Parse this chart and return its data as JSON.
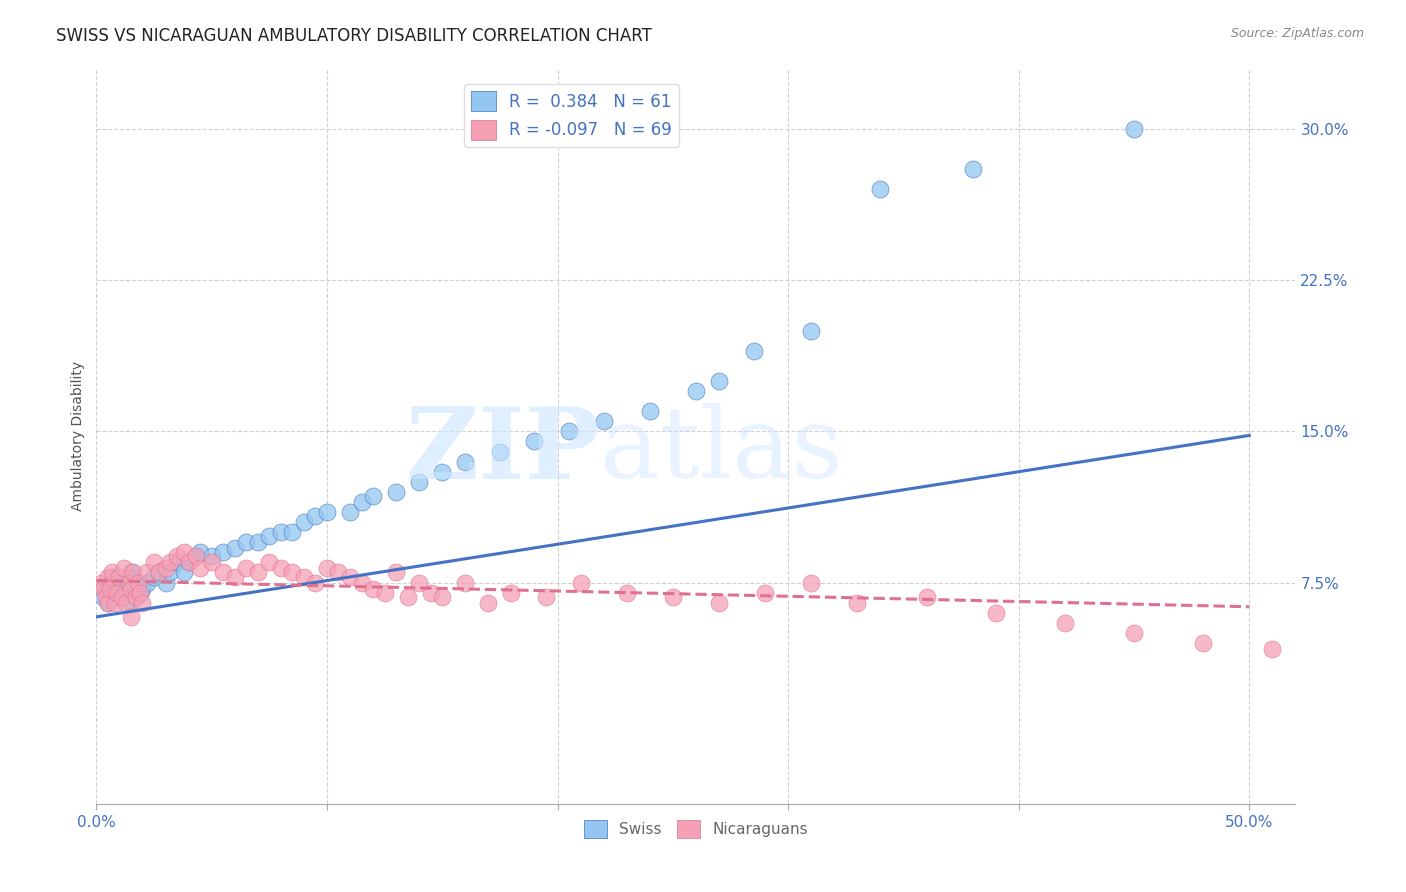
{
  "title": "SWISS VS NICARAGUAN AMBULATORY DISABILITY CORRELATION CHART",
  "source": "Source: ZipAtlas.com",
  "ylabel": "Ambulatory Disability",
  "xlim": [
    0.0,
    0.52
  ],
  "ylim": [
    -0.035,
    0.33
  ],
  "xticks": [
    0.0,
    0.1,
    0.2,
    0.3,
    0.4,
    0.5
  ],
  "yticks": [
    0.075,
    0.15,
    0.225,
    0.3
  ],
  "ytick_labels": [
    "7.5%",
    "15.0%",
    "22.5%",
    "30.0%"
  ],
  "xtick_labels": [
    "0.0%",
    "",
    "",
    "",
    "",
    "50.0%"
  ],
  "swiss_R": 0.384,
  "swiss_N": 61,
  "nicaraguan_R": -0.097,
  "nicaraguan_N": 69,
  "swiss_color": "#93C6F0",
  "nicaraguan_color": "#F5A0B5",
  "swiss_line_color": "#4472C4",
  "nicaraguan_line_color": "#E07090",
  "swiss_line_x0": 0.0,
  "swiss_line_y0": 0.058,
  "swiss_line_x1": 0.5,
  "swiss_line_y1": 0.148,
  "nic_line_x0": 0.0,
  "nic_line_y0": 0.076,
  "nic_line_x1": 0.5,
  "nic_line_y1": 0.063,
  "background_color": "#FFFFFF",
  "plot_bg_color": "#FFFFFF",
  "grid_color": "#CCCCCC",
  "title_fontsize": 12,
  "axis_label_fontsize": 10,
  "tick_fontsize": 11,
  "legend_fontsize": 12,
  "swiss_points_x": [
    0.002,
    0.003,
    0.004,
    0.005,
    0.005,
    0.006,
    0.007,
    0.008,
    0.009,
    0.01,
    0.011,
    0.012,
    0.013,
    0.014,
    0.015,
    0.015,
    0.016,
    0.017,
    0.018,
    0.019,
    0.02,
    0.022,
    0.025,
    0.027,
    0.03,
    0.032,
    0.035,
    0.038,
    0.04,
    0.043,
    0.045,
    0.05,
    0.055,
    0.06,
    0.065,
    0.07,
    0.075,
    0.08,
    0.085,
    0.09,
    0.095,
    0.1,
    0.11,
    0.115,
    0.12,
    0.13,
    0.14,
    0.15,
    0.16,
    0.175,
    0.19,
    0.205,
    0.22,
    0.24,
    0.26,
    0.27,
    0.285,
    0.31,
    0.34,
    0.38,
    0.45
  ],
  "swiss_points_y": [
    0.073,
    0.068,
    0.072,
    0.065,
    0.075,
    0.07,
    0.078,
    0.068,
    0.072,
    0.07,
    0.075,
    0.068,
    0.072,
    0.078,
    0.065,
    0.08,
    0.073,
    0.068,
    0.075,
    0.07,
    0.072,
    0.075,
    0.078,
    0.08,
    0.075,
    0.08,
    0.085,
    0.08,
    0.085,
    0.088,
    0.09,
    0.088,
    0.09,
    0.092,
    0.095,
    0.095,
    0.098,
    0.1,
    0.1,
    0.105,
    0.108,
    0.11,
    0.11,
    0.115,
    0.118,
    0.12,
    0.125,
    0.13,
    0.135,
    0.14,
    0.145,
    0.15,
    0.155,
    0.16,
    0.17,
    0.175,
    0.19,
    0.2,
    0.27,
    0.28,
    0.3
  ],
  "nicaraguan_points_x": [
    0.002,
    0.003,
    0.004,
    0.005,
    0.005,
    0.006,
    0.007,
    0.008,
    0.009,
    0.01,
    0.011,
    0.012,
    0.013,
    0.014,
    0.015,
    0.015,
    0.016,
    0.017,
    0.018,
    0.019,
    0.02,
    0.022,
    0.025,
    0.027,
    0.03,
    0.032,
    0.035,
    0.038,
    0.04,
    0.043,
    0.045,
    0.05,
    0.055,
    0.06,
    0.065,
    0.07,
    0.075,
    0.08,
    0.085,
    0.09,
    0.095,
    0.1,
    0.105,
    0.11,
    0.115,
    0.12,
    0.125,
    0.13,
    0.135,
    0.14,
    0.145,
    0.15,
    0.16,
    0.17,
    0.18,
    0.195,
    0.21,
    0.23,
    0.25,
    0.27,
    0.29,
    0.31,
    0.33,
    0.36,
    0.39,
    0.42,
    0.45,
    0.48,
    0.51
  ],
  "nicaraguan_points_y": [
    0.075,
    0.072,
    0.068,
    0.078,
    0.065,
    0.072,
    0.08,
    0.065,
    0.07,
    0.078,
    0.068,
    0.082,
    0.065,
    0.075,
    0.058,
    0.072,
    0.08,
    0.068,
    0.075,
    0.07,
    0.065,
    0.08,
    0.085,
    0.08,
    0.082,
    0.085,
    0.088,
    0.09,
    0.085,
    0.088,
    0.082,
    0.085,
    0.08,
    0.078,
    0.082,
    0.08,
    0.085,
    0.082,
    0.08,
    0.078,
    0.075,
    0.082,
    0.08,
    0.078,
    0.075,
    0.072,
    0.07,
    0.08,
    0.068,
    0.075,
    0.07,
    0.068,
    0.075,
    0.065,
    0.07,
    0.068,
    0.075,
    0.07,
    0.068,
    0.065,
    0.07,
    0.075,
    0.065,
    0.068,
    0.06,
    0.055,
    0.05,
    0.045,
    0.042
  ]
}
